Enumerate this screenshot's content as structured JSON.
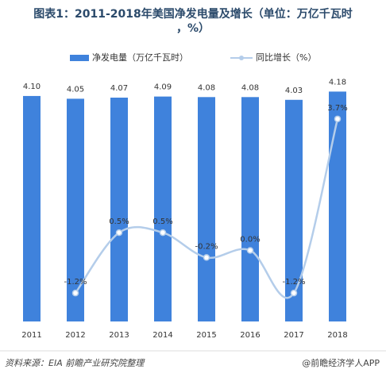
{
  "chart_data": {
    "type": "bar",
    "title": "图表1：2011-2018年美国净发电量及增长（单位：万亿千瓦时，%）",
    "categories": [
      "2011",
      "2012",
      "2013",
      "2014",
      "2015",
      "2016",
      "2017",
      "2018"
    ],
    "series": [
      {
        "name": "净发电量（万亿千瓦时）",
        "color": "#3f82dc",
        "type": "bar",
        "values": [
          4.1,
          4.05,
          4.07,
          4.09,
          4.08,
          4.08,
          4.03,
          4.18
        ],
        "value_labels": [
          "4.10",
          "4.05",
          "4.07",
          "4.09",
          "4.08",
          "4.08",
          "4.03",
          "4.18"
        ]
      },
      {
        "name": "同比增长（%）",
        "color": "#b4cdea",
        "type": "line",
        "axis": "y2",
        "values": [
          null,
          -1.2,
          0.5,
          0.5,
          -0.2,
          0.0,
          -1.2,
          3.7
        ],
        "value_labels": [
          null,
          "-1.2%",
          "0.5%",
          "0.5%",
          "-0.2%",
          "0.0%",
          "-1.2%",
          "3.7%"
        ]
      }
    ],
    "ylim": [
      0,
      4.2
    ],
    "y2lim": [
      -2,
      4.5
    ],
    "source": "资料来源：EIA 前瞻产业研究院整理",
    "credit": "@前瞻经济学人APP"
  }
}
